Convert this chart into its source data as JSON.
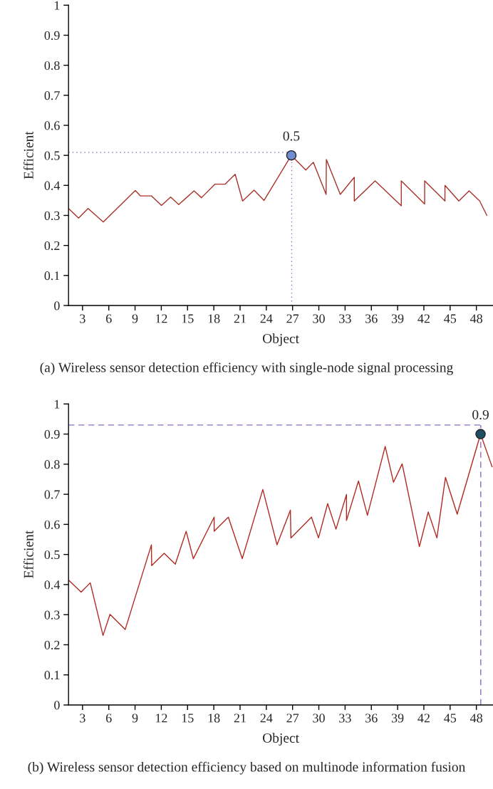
{
  "chart_data": [
    {
      "type": "line",
      "xlabel": "Object",
      "ylabel": "Efficient",
      "xlim": [
        1.4,
        49.9
      ],
      "xticks": [
        3,
        6,
        9,
        12,
        15,
        18,
        21,
        24,
        27,
        30,
        33,
        36,
        39,
        42,
        45,
        48
      ],
      "ylim": [
        0,
        1
      ],
      "yticks": [
        0,
        0.1,
        0.2,
        0.3,
        0.4,
        0.5,
        0.6,
        0.7,
        0.8,
        0.9,
        1
      ],
      "grid": false,
      "legend": false,
      "line_style": "solid",
      "series": [
        {
          "marker": "none",
          "color": "#a8322a",
          "x": [
            1.4,
            2.55,
            3.63,
            5.37,
            9.03,
            9.6,
            10.87,
            12.02,
            13.07,
            13.99,
            15.74,
            16.59,
            18.12,
            19.29,
            20.44,
            21.29,
            22.6,
            23.74,
            26.86,
            28.51,
            29.37,
            30.83,
            30.86,
            32.45,
            34.05,
            34.05,
            36.43,
            39.42,
            39.42,
            42.09,
            42.09,
            44.41,
            44.41,
            46.0,
            47.17,
            48.38,
            49.2
          ],
          "values": [
            0.323,
            0.291,
            0.323,
            0.278,
            0.383,
            0.365,
            0.365,
            0.333,
            0.361,
            0.336,
            0.382,
            0.359,
            0.404,
            0.404,
            0.437,
            0.348,
            0.384,
            0.35,
            0.5,
            0.451,
            0.477,
            0.37,
            0.486,
            0.37,
            0.427,
            0.348,
            0.415,
            0.332,
            0.415,
            0.338,
            0.415,
            0.348,
            0.4,
            0.348,
            0.382,
            0.348,
            0.3
          ]
        },
        {
          "type": "scatter",
          "marker": "circle",
          "color": "#6f8fd0",
          "x": [
            26.86
          ],
          "values": [
            0.5
          ]
        }
      ],
      "ref_lines": [
        {
          "axis": "y",
          "value": 0.51,
          "color": "#9b6fc9",
          "line_style": "dotted"
        },
        {
          "axis": "x",
          "value": 26.9,
          "color": "#9b6fc9",
          "line_style": "dotted"
        }
      ],
      "annotations": [
        {
          "text": "0.5",
          "x": 26.86,
          "y": 0.5
        },
        "(a) Wireless sensor detection efficiency with single-node signal processing"
      ]
    },
    {
      "type": "line",
      "xlabel": "Object",
      "ylabel": "Efficient",
      "xlim": [
        1.4,
        49.9
      ],
      "xticks": [
        3,
        6,
        9,
        12,
        15,
        18,
        21,
        24,
        27,
        30,
        33,
        36,
        39,
        42,
        45,
        48
      ],
      "ylim": [
        0,
        1
      ],
      "yticks": [
        0,
        0.1,
        0.2,
        0.3,
        0.4,
        0.5,
        0.6,
        0.7,
        0.8,
        0.9,
        1
      ],
      "grid": false,
      "legend": false,
      "line_style": "solid",
      "series": [
        {
          "marker": "none",
          "color": "#b02a22",
          "x": [
            1.4,
            2.84,
            3.88,
            5.34,
            6.14,
            7.88,
            10.87,
            10.9,
            12.33,
            13.6,
            14.84,
            15.66,
            18.04,
            18.04,
            19.66,
            21.25,
            23.6,
            25.22,
            26.75,
            26.81,
            29.16,
            29.96,
            31.01,
            31.96,
            33.16,
            33.16,
            34.53,
            35.55,
            37.58,
            38.53,
            39.52,
            41.49,
            42.5,
            43.49,
            44.47,
            45.81,
            48.48,
            49.8
          ],
          "values": [
            0.415,
            0.375,
            0.406,
            0.231,
            0.301,
            0.251,
            0.532,
            0.463,
            0.504,
            0.468,
            0.577,
            0.486,
            0.624,
            0.577,
            0.624,
            0.486,
            0.716,
            0.532,
            0.647,
            0.555,
            0.624,
            0.555,
            0.669,
            0.584,
            0.699,
            0.613,
            0.744,
            0.63,
            0.859,
            0.74,
            0.801,
            0.526,
            0.641,
            0.555,
            0.756,
            0.634,
            0.9,
            0.791
          ]
        },
        {
          "type": "scatter",
          "marker": "circle",
          "color": "#1f4e62",
          "x": [
            48.48
          ],
          "values": [
            0.9
          ]
        }
      ],
      "ref_lines": [
        {
          "axis": "y",
          "value": 0.93,
          "color": "#8a6cc4",
          "line_style": "dashed"
        },
        {
          "axis": "x",
          "value": 48.5,
          "color": "#8a6cc4",
          "line_style": "dashed"
        }
      ],
      "annotations": [
        {
          "text": "0.9",
          "x": 48.48,
          "y": 0.9
        },
        "(b) Wireless sensor detection efficiency based on multinode information fusion"
      ]
    }
  ]
}
